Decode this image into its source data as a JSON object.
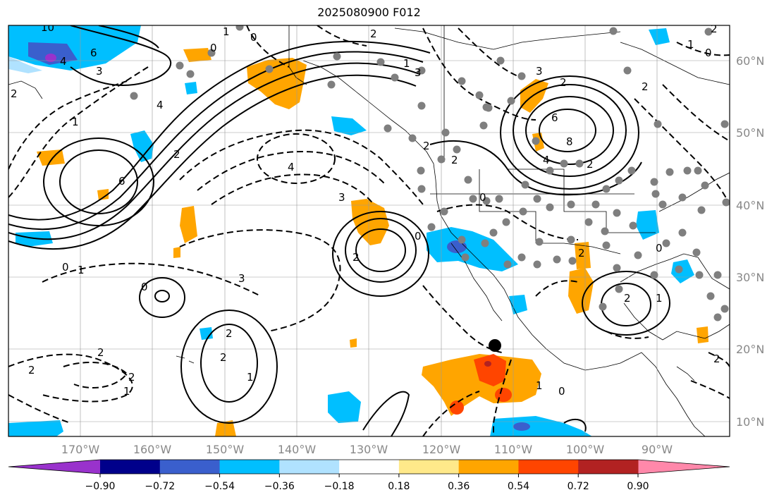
{
  "title": "2025080900 F012",
  "lat_labels": [
    "60°N",
    "50°N",
    "40°N",
    "30°N",
    "20°N",
    "10°N"
  ],
  "lon_labels": [
    "170°W",
    "160°W",
    "150°W",
    "140°W",
    "130°W",
    "120°W",
    "110°W",
    "100°W",
    "90°W"
  ],
  "colorbar": {
    "colors": [
      "#9932CC",
      "#00008B",
      "#3A5FCD",
      "#00BFFF",
      "#B0E2FF",
      "#FFFFFF",
      "#FFE98A",
      "#FFA500",
      "#FF4500",
      "#B22222",
      "#FF88AA"
    ],
    "tick_labels": [
      "−0.90",
      "−0.72",
      "−0.54",
      "−0.36",
      "−0.18",
      "0.18",
      "0.36",
      "0.54",
      "0.72",
      "0.90"
    ]
  },
  "contour_labels": [
    "10",
    "6",
    "4",
    "3",
    "2",
    "1",
    "0",
    "2",
    "0",
    "1",
    "2",
    "4",
    "6",
    "3",
    "1",
    "0",
    "2",
    "1",
    "2",
    "0",
    "4",
    "3",
    "2",
    "2",
    "1",
    "2",
    "1",
    "0",
    "1",
    "2",
    "1",
    "2",
    "2",
    "0",
    "6",
    "8",
    "4",
    "3",
    "2",
    "0",
    "2",
    "1",
    "2",
    "2",
    "2",
    "0",
    "2",
    "3",
    "2",
    "0"
  ],
  "colors": {
    "frame": "#000000",
    "grid": "#999999",
    "station": "#7f7f7f",
    "marker": "#000000"
  }
}
